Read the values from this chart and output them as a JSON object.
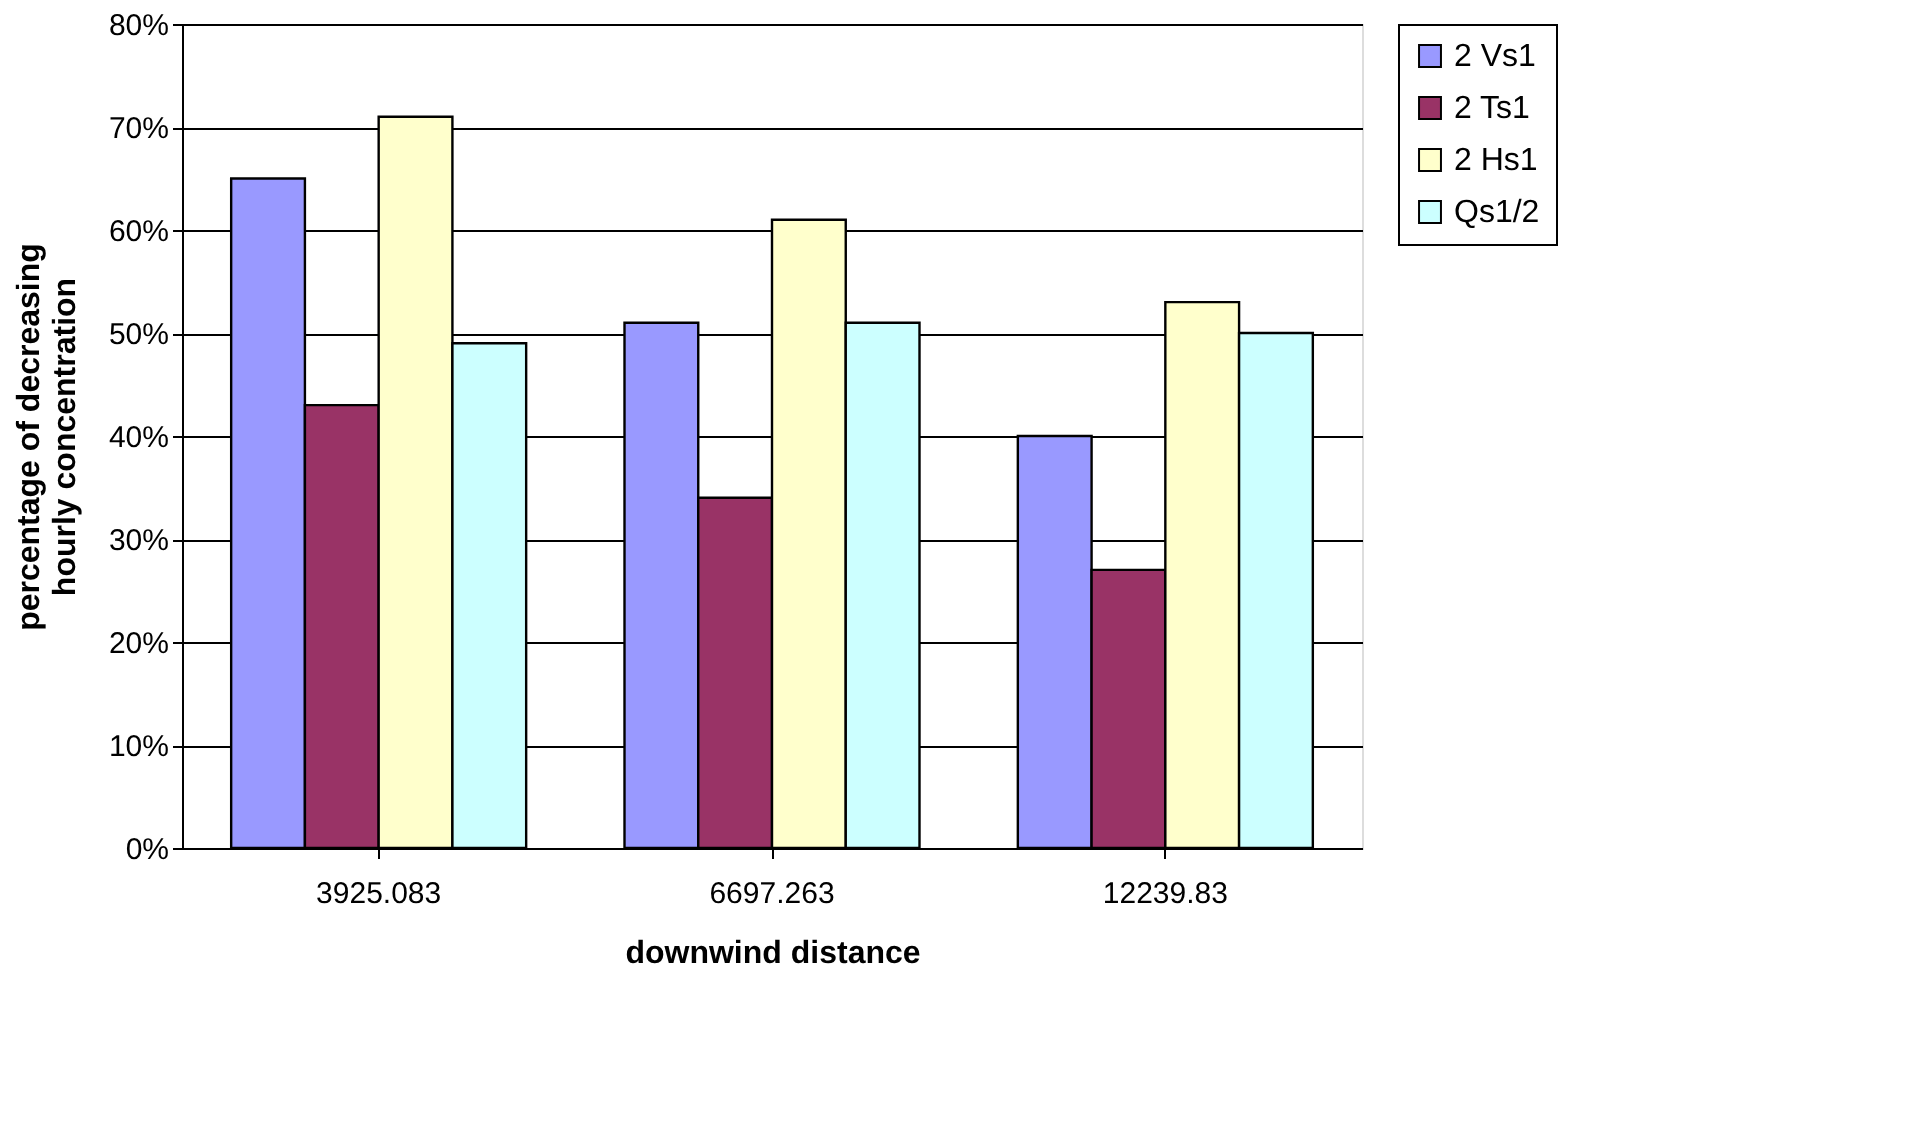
{
  "chart_data": {
    "type": "bar",
    "xlabel": "downwind distance",
    "ylabel": "percentage of decreasing hourly concentration",
    "categories": [
      "3925.083",
      "6697.263",
      "12239.83"
    ],
    "series": [
      {
        "name": "2 Vs1",
        "color": "#9999ff",
        "values": [
          65,
          51,
          40
        ]
      },
      {
        "name": "2 Ts1",
        "color": "#993366",
        "values": [
          43,
          34,
          27
        ]
      },
      {
        "name": " 2 Hs1",
        "color": "#ffffcc",
        "values": [
          71,
          61,
          53
        ]
      },
      {
        "name": "Qs1/2",
        "color": "#ccffff",
        "values": [
          49,
          51,
          50
        ]
      }
    ],
    "ylim": [
      0,
      80
    ],
    "yticks": [
      {
        "value": 0,
        "label": "0%"
      },
      {
        "value": 10,
        "label": "10%"
      },
      {
        "value": 20,
        "label": "20%"
      },
      {
        "value": 30,
        "label": "30%"
      },
      {
        "value": 40,
        "label": "40%"
      },
      {
        "value": 50,
        "label": "50%"
      },
      {
        "value": 60,
        "label": "60%"
      },
      {
        "value": 70,
        "label": "70%"
      },
      {
        "value": 80,
        "label": "80%"
      }
    ],
    "grid": "y",
    "legend": "right"
  }
}
